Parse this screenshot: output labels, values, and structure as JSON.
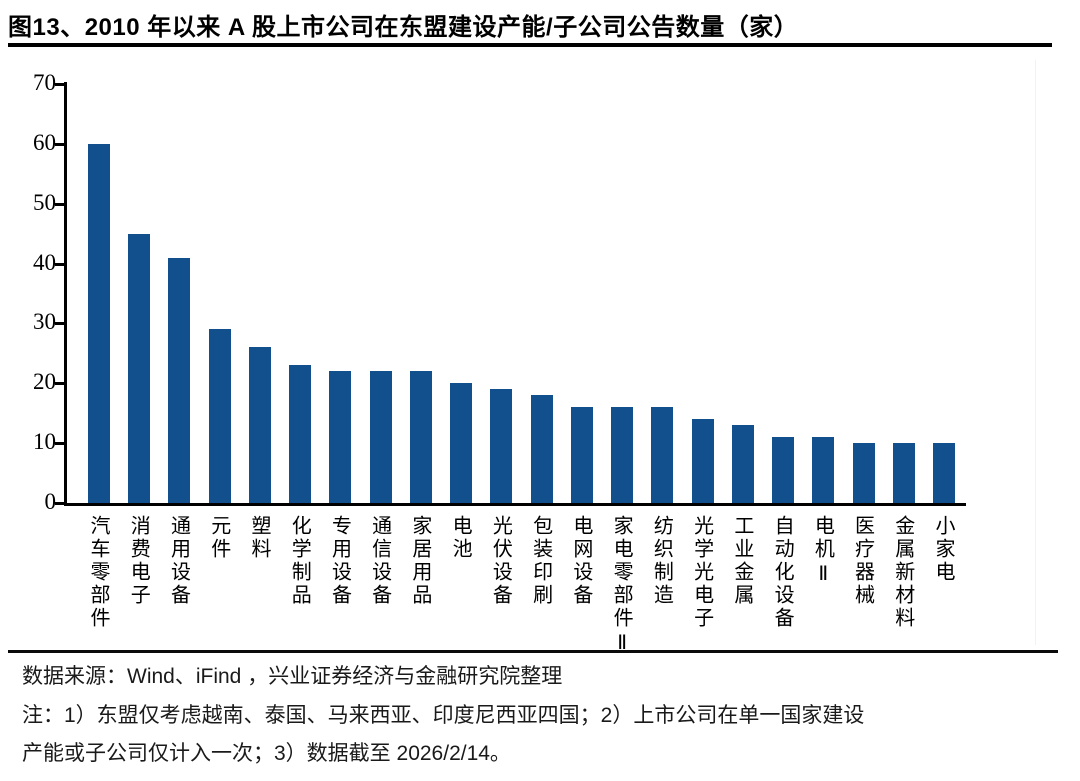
{
  "title": "图13、2010 年以来 A 股上市公司在东盟建设产能/子公司公告数量（家）",
  "chart_data": {
    "type": "bar",
    "title": "图13、2010 年以来 A 股上市公司在东盟建设产能/子公司公告数量（家）",
    "categories": [
      "汽车零部件",
      "消费电子",
      "通用设备",
      "元件",
      "塑料",
      "化学制品",
      "专用设备",
      "通信设备",
      "家居用品",
      "电池",
      "光伏设备",
      "包装印刷",
      "电网设备",
      "家电零部件Ⅱ",
      "纺织制造",
      "光学光电子",
      "工业金属",
      "自动化设备",
      "电机Ⅱ",
      "医疗器械",
      "金属新材料",
      "小家电"
    ],
    "values": [
      60,
      45,
      41,
      29,
      26,
      23,
      22,
      22,
      22,
      20,
      19,
      18,
      16,
      16,
      16,
      14,
      13,
      11,
      11,
      10,
      10,
      10
    ],
    "xlabel": "",
    "ylabel": "",
    "ylim": [
      0,
      70
    ],
    "yticks": [
      0,
      10,
      20,
      30,
      40,
      50,
      60,
      70
    ],
    "grid": false,
    "legend_position": "none",
    "bar_color": "#11508C",
    "axis_color": "#000000"
  },
  "footer": {
    "source": "数据来源：Wind、iFind ，兴业证券经济与金融研究院整理",
    "note_lines": [
      "注：1）东盟仅考虑越南、泰国、马来西亚、印度尼西亚四国；2）上市公司在单一国家建设",
      "产能或子公司仅计入一次；3）数据截至 2026/2/14。"
    ]
  }
}
